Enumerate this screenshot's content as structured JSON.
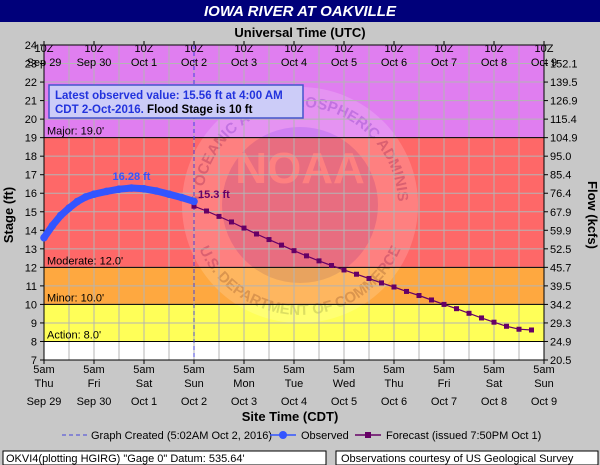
{
  "chart_data": {
    "type": "line",
    "title": "IOWA RIVER AT OAKVILLE",
    "top_axis_title": "Universal Time (UTC)",
    "bottom_axis_title": "Site Time (CDT)",
    "ylabel": "Stage (ft)",
    "y2label": "Flow (kcfs)",
    "ylim": [
      7,
      24
    ],
    "y_ticks": [
      7,
      8,
      9,
      10,
      11,
      12,
      13,
      14,
      15,
      16,
      17,
      18,
      19,
      20,
      21,
      22,
      23,
      24
    ],
    "flow_ticks": [
      {
        "stage": 24,
        "label": ""
      },
      {
        "stage": 23,
        "label": "152.1"
      },
      {
        "stage": 22,
        "label": "139.5"
      },
      {
        "stage": 21,
        "label": "126.9"
      },
      {
        "stage": 20,
        "label": "115.4"
      },
      {
        "stage": 19,
        "label": "104.9"
      },
      {
        "stage": 18,
        "label": "95.0"
      },
      {
        "stage": 17,
        "label": "85.4"
      },
      {
        "stage": 16,
        "label": "76.4"
      },
      {
        "stage": 15,
        "label": "67.9"
      },
      {
        "stage": 14,
        "label": "59.9"
      },
      {
        "stage": 13,
        "label": "52.5"
      },
      {
        "stage": 12,
        "label": "45.7"
      },
      {
        "stage": 11,
        "label": "39.5"
      },
      {
        "stage": 10,
        "label": "34.2"
      },
      {
        "stage": 9,
        "label": "29.3"
      },
      {
        "stage": 8,
        "label": "24.9"
      },
      {
        "stage": 7,
        "label": "20.5"
      }
    ],
    "x_range_hours": [
      0,
      240
    ],
    "bottom_ticks": [
      {
        "line1": "5am",
        "line2": "Thu",
        "line3": "Sep 29"
      },
      {
        "line1": "5am",
        "line2": "Fri",
        "line3": "Sep 30"
      },
      {
        "line1": "5am",
        "line2": "Sat",
        "line3": "Oct 1"
      },
      {
        "line1": "5am",
        "line2": "Sun",
        "line3": "Oct 2"
      },
      {
        "line1": "5am",
        "line2": "Mon",
        "line3": "Oct 3"
      },
      {
        "line1": "5am",
        "line2": "Tue",
        "line3": "Oct 4"
      },
      {
        "line1": "5am",
        "line2": "Wed",
        "line3": "Oct 5"
      },
      {
        "line1": "5am",
        "line2": "Thu",
        "line3": "Oct 6"
      },
      {
        "line1": "5am",
        "line2": "Fri",
        "line3": "Oct 7"
      },
      {
        "line1": "5am",
        "line2": "Sat",
        "line3": "Oct 8"
      },
      {
        "line1": "5am",
        "line2": "Sun",
        "line3": "Oct 9"
      }
    ],
    "top_ticks": [
      {
        "line1": "10Z",
        "line2": "Sep 29"
      },
      {
        "line1": "10Z",
        "line2": "Sep 30"
      },
      {
        "line1": "10Z",
        "line2": "Oct 1"
      },
      {
        "line1": "10Z",
        "line2": "Oct 2"
      },
      {
        "line1": "10Z",
        "line2": "Oct 3"
      },
      {
        "line1": "10Z",
        "line2": "Oct 4"
      },
      {
        "line1": "10Z",
        "line2": "Oct 5"
      },
      {
        "line1": "10Z",
        "line2": "Oct 6"
      },
      {
        "line1": "10Z",
        "line2": "Oct 7"
      },
      {
        "line1": "10Z",
        "line2": "Oct 8"
      },
      {
        "line1": "10Z",
        "line2": "Oct 9"
      }
    ],
    "flood_bands": [
      {
        "name": "record",
        "from": 19,
        "to": 24,
        "color": "#e07ef0"
      },
      {
        "name": "major",
        "from": 12,
        "to": 19,
        "color": "#fe6868"
      },
      {
        "name": "moderate",
        "from": 10,
        "to": 12,
        "color": "#fea840"
      },
      {
        "name": "minor",
        "from": 8,
        "to": 10,
        "color": "#ffff58"
      }
    ],
    "thresholds": [
      {
        "value": 19,
        "label": "Major: 19.0'"
      },
      {
        "value": 12,
        "label": "Moderate: 12.0'"
      },
      {
        "value": 10,
        "label": "Minor: 10.0'"
      },
      {
        "value": 8,
        "label": "Action: 8.0'"
      }
    ],
    "graph_created_hours": 72,
    "observed": {
      "name": "Observed",
      "color": "#3355ff",
      "x_hours": [
        0,
        4,
        8,
        12,
        16,
        20,
        24,
        30,
        36,
        42,
        48,
        54,
        60,
        66,
        72
      ],
      "values": [
        13.6,
        14.25,
        14.8,
        15.2,
        15.55,
        15.8,
        15.95,
        16.1,
        16.22,
        16.28,
        16.24,
        16.12,
        15.95,
        15.77,
        15.56
      ]
    },
    "forecast": {
      "name": "Forecast (issued 7:50PM Oct 1)",
      "color": "#660066",
      "x_hours": [
        72,
        78,
        84,
        90,
        96,
        102,
        108,
        114,
        120,
        126,
        132,
        138,
        144,
        150,
        156,
        162,
        168,
        174,
        180,
        186,
        192,
        198,
        204,
        210,
        216,
        222,
        228,
        234
      ],
      "values": [
        15.3,
        15.04,
        14.75,
        14.45,
        14.12,
        13.8,
        13.5,
        13.2,
        12.9,
        12.62,
        12.35,
        12.1,
        11.86,
        11.63,
        11.4,
        11.16,
        10.94,
        10.7,
        10.48,
        10.24,
        10.0,
        9.77,
        9.52,
        9.27,
        9.04,
        8.82,
        8.66,
        8.62
      ]
    },
    "peak_label": "16.28 ft",
    "forecast_start_label": "15.3 ft",
    "info_box": {
      "line1": "Latest observed value: 15.56 ft at 4:00 AM",
      "line2a": "CDT 2-Oct-2016.",
      "line2b": " Flood Stage is 10 ft"
    },
    "watermark": {
      "logo_text": "NOAA",
      "ring_text": "NATIONAL OCEANIC AND ATMOSPHERIC ADMINISTRATION",
      "ring_text_bottom": "U.S. DEPARTMENT OF COMMERCE"
    },
    "legend": {
      "graph_created": "Graph Created (5:02AM Oct 2, 2016)",
      "observed": "Observed",
      "forecast": "Forecast (issued 7:50PM Oct 1)"
    },
    "footer": {
      "left": "OKVI4(plotting HGIRG) \"Gage 0\" Datum:  535.64'",
      "right": "Observations courtesy of US Geological Survey"
    }
  }
}
